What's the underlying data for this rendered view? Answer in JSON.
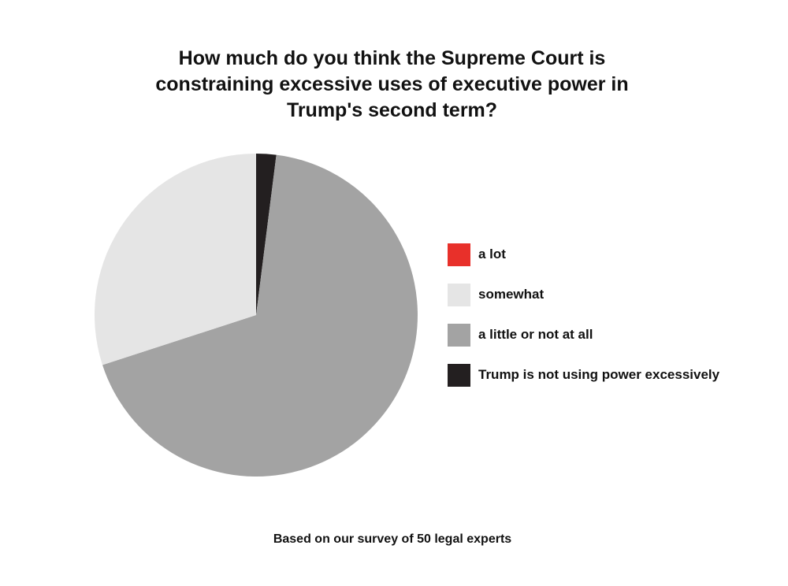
{
  "chart_data": {
    "type": "pie",
    "title_lines": [
      "How much do you think the Supreme Court is",
      "constraining excessive uses of executive power in",
      "Trump's second term?"
    ],
    "slices": [
      {
        "label": "a lot",
        "value": 0,
        "color": "#e8302a"
      },
      {
        "label": "somewhat",
        "value": 30,
        "color": "#e5e5e5"
      },
      {
        "label": "a little or not at all",
        "value": 68,
        "color": "#a3a3a3"
      },
      {
        "label": "Trump is not using power excessively",
        "value": 2,
        "color": "#231f20"
      }
    ],
    "legend_position": "right",
    "footnote": "Based on our survey of 50 legal experts"
  }
}
